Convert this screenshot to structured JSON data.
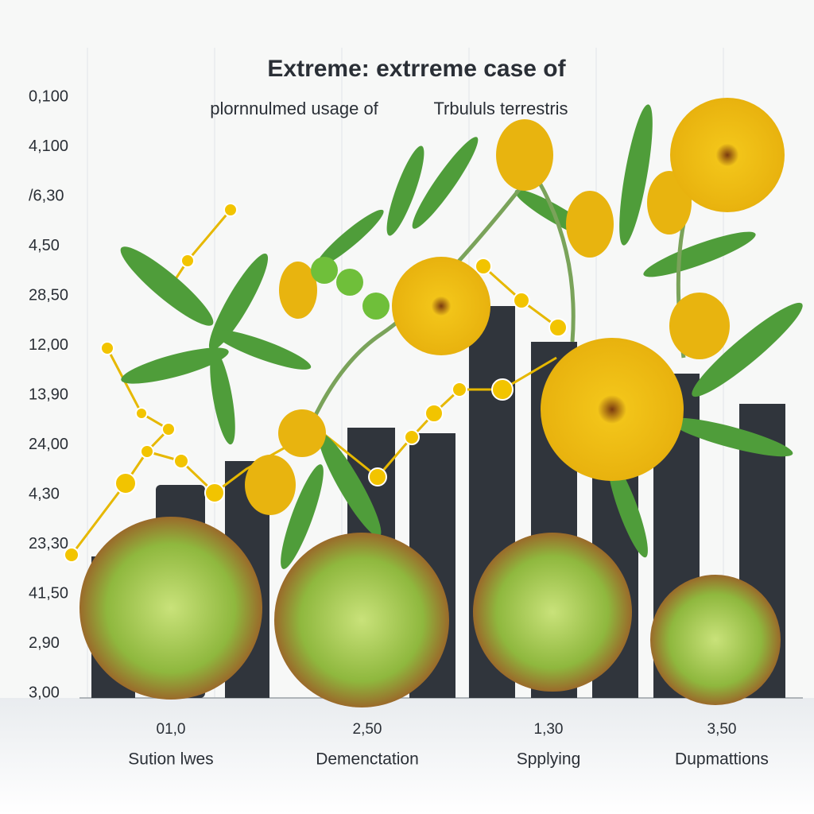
{
  "header": {
    "title": "Extreme: extrreme case of",
    "subtitle": "plornnulmed usage of",
    "subtitle_name": "Trbululs terrestris"
  },
  "axis": {
    "labels": [
      "0,100",
      "4,100",
      "/6,30",
      "4,50",
      "28,50",
      "12,00",
      "13,90",
      "24,00",
      "4,30",
      "23,30",
      "41,50",
      "2,90",
      "3,00"
    ]
  },
  "groups": [
    {
      "value": "01,0",
      "label": "Sution lwes"
    },
    {
      "value": "2,50",
      "label": "Demenctation"
    },
    {
      "value": "1,30",
      "label": "Spplying"
    },
    {
      "value": "3,50",
      "label": "Dupmattions"
    }
  ]
}
